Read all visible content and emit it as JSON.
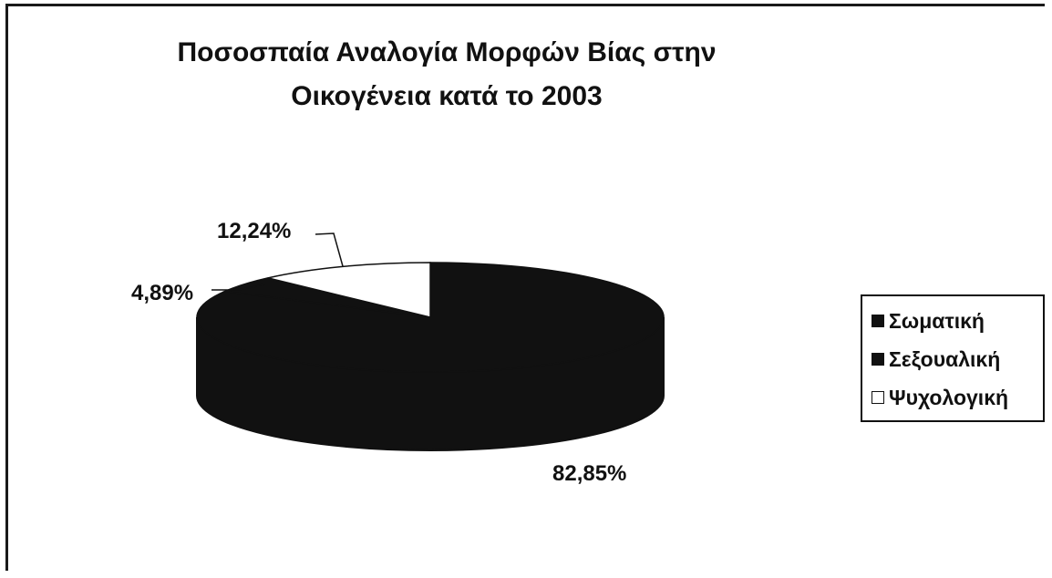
{
  "chart_data": {
    "type": "pie",
    "title_lines": [
      "Ποσοσπαία Αναλογία Μορφών Βίας στην",
      "Οικογένεια κατά το 2003"
    ],
    "slices": [
      {
        "name": "Σωματική",
        "value": 82.85,
        "label": "82,85%",
        "color": "#111111"
      },
      {
        "name": "Σεξουαλική",
        "value": 4.89,
        "label": "4,89%",
        "color": "#111111"
      },
      {
        "name": "Ψυχολογική",
        "value": 12.24,
        "label": "12,24%",
        "color": "#ffffff"
      }
    ],
    "legend_position": "right",
    "style": "3d-pie"
  }
}
